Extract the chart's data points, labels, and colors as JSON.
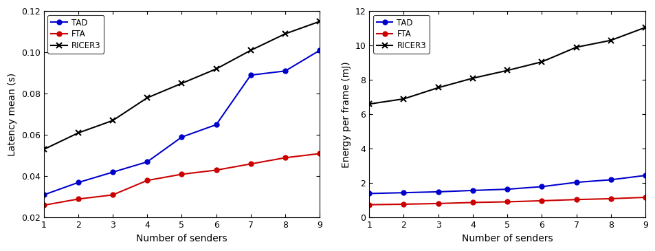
{
  "x": [
    1,
    2,
    3,
    4,
    5,
    6,
    7,
    8,
    9
  ],
  "left": {
    "xlabel": "Number of senders",
    "ylabel": "Latency mean (s)",
    "ylim": [
      0.02,
      0.12
    ],
    "yticks": [
      0.02,
      0.04,
      0.06,
      0.08,
      0.1,
      0.12
    ],
    "TAD": [
      0.031,
      0.037,
      0.042,
      0.047,
      0.059,
      0.065,
      0.089,
      0.091,
      0.101
    ],
    "FTA": [
      0.026,
      0.029,
      0.031,
      0.038,
      0.041,
      0.043,
      0.046,
      0.049,
      0.051
    ],
    "RICER3": [
      0.053,
      0.061,
      0.067,
      0.078,
      0.085,
      0.092,
      0.101,
      0.109,
      0.115
    ]
  },
  "right": {
    "xlabel": "Number of senders",
    "ylabel": "Energy per frame (mJ)",
    "ylim": [
      0,
      12
    ],
    "yticks": [
      0,
      2,
      4,
      6,
      8,
      10,
      12
    ],
    "TAD": [
      1.4,
      1.45,
      1.5,
      1.58,
      1.65,
      1.8,
      2.05,
      2.2,
      2.45
    ],
    "FTA": [
      0.75,
      0.78,
      0.82,
      0.88,
      0.92,
      0.98,
      1.05,
      1.1,
      1.18
    ],
    "RICER3": [
      6.6,
      6.9,
      7.55,
      8.1,
      8.55,
      9.05,
      9.9,
      10.3,
      11.05
    ]
  },
  "TAD_color": "#0000cc",
  "FTA_color": "#cc0000",
  "RICER3_color": "#000000",
  "bg_color": "#ffffff",
  "legend_labels": [
    "TAD",
    "FTA",
    "RICER3"
  ]
}
